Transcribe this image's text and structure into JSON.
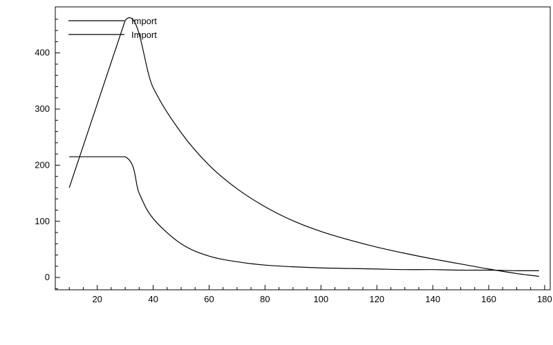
{
  "chart_data": {
    "type": "line",
    "title": "",
    "xlabel": "",
    "ylabel": "",
    "xlim": [
      5,
      182
    ],
    "ylim": [
      -22,
      482
    ],
    "x_ticks": [
      20,
      40,
      60,
      80,
      100,
      120,
      140,
      160,
      180
    ],
    "y_ticks": [
      0,
      100,
      200,
      300,
      400
    ],
    "legend_placement": "top-left",
    "grid": false,
    "series": [
      {
        "name": "Import",
        "color": "#000000",
        "x": [
          10,
          30,
          40,
          50,
          60,
          70,
          80,
          90,
          100,
          110,
          120,
          130,
          140,
          150,
          160,
          170,
          178
        ],
        "values": [
          160,
          458,
          338,
          258,
          200,
          158,
          126,
          101,
          82,
          67,
          54,
          43,
          33,
          24,
          15,
          7,
          2
        ]
      },
      {
        "name": "Import",
        "color": "#000000",
        "x": [
          10,
          30,
          35,
          40,
          50,
          60,
          70,
          80,
          90,
          100,
          110,
          120,
          130,
          140,
          150,
          160,
          170,
          178
        ],
        "values": [
          215,
          215,
          150,
          105,
          60,
          38,
          28,
          22,
          19,
          17,
          16,
          15,
          14,
          14,
          13,
          13,
          12,
          12
        ]
      }
    ]
  }
}
